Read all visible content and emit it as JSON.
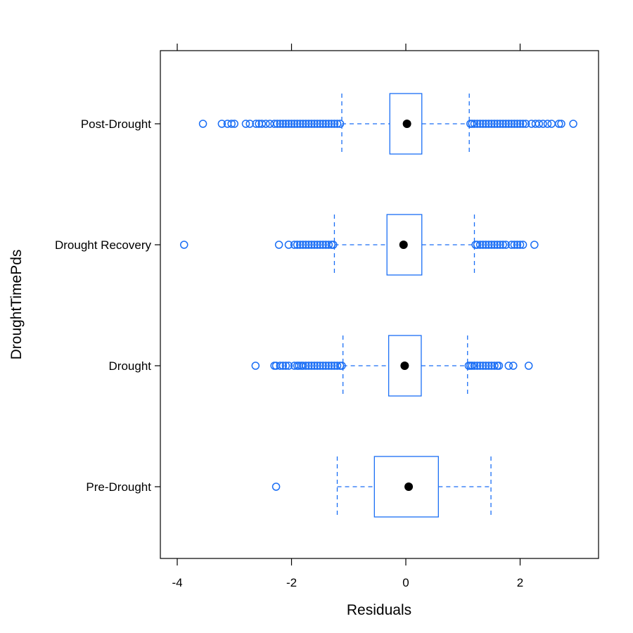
{
  "chart_data": {
    "type": "boxplot",
    "orientation": "horizontal",
    "xlabel": "Residuals",
    "ylabel": "DroughtTimePds",
    "xlim": [
      -4.0,
      3.5
    ],
    "xticks": [
      -4,
      -2,
      0,
      2
    ],
    "xtick_labels": [
      "-4",
      "-2",
      "0",
      "2"
    ],
    "grid": false,
    "colors": {
      "box": "#1a6ef5",
      "median": "#000000",
      "frame": "#000000"
    },
    "categories": [
      "Pre-Drought",
      "Drought",
      "Drought Recovery",
      "Post-Drought"
    ],
    "series": [
      {
        "category": "Pre-Drought",
        "whisker_low": -1.2,
        "q1": -0.55,
        "median": 0.05,
        "q3": 0.57,
        "whisker_high": 1.49,
        "outliers": [
          -2.27
        ]
      },
      {
        "category": "Drought",
        "whisker_low": -1.1,
        "q1": -0.3,
        "median": -0.02,
        "q3": 0.27,
        "whisker_high": 1.08,
        "outliers": [
          -2.63,
          -2.3,
          -2.27,
          -2.2,
          -2.15,
          -2.1,
          -2.05,
          -1.95,
          -1.9,
          -1.87,
          -1.83,
          -1.8,
          -1.75,
          -1.7,
          -1.65,
          -1.6,
          -1.55,
          -1.5,
          -1.45,
          -1.4,
          -1.35,
          -1.3,
          -1.25,
          -1.2,
          -1.15,
          -1.12,
          1.1,
          1.13,
          1.16,
          1.2,
          1.25,
          1.3,
          1.35,
          1.4,
          1.45,
          1.5,
          1.55,
          1.6,
          1.63,
          1.8,
          1.88,
          2.15
        ]
      },
      {
        "category": "Drought Recovery",
        "whisker_low": -1.25,
        "q1": -0.33,
        "median": -0.04,
        "q3": 0.28,
        "whisker_high": 1.2,
        "outliers": [
          -3.88,
          -2.22,
          -2.05,
          -1.95,
          -1.9,
          -1.85,
          -1.8,
          -1.75,
          -1.7,
          -1.65,
          -1.6,
          -1.55,
          -1.5,
          -1.45,
          -1.4,
          -1.35,
          -1.3,
          -1.27,
          1.22,
          1.25,
          1.3,
          1.35,
          1.4,
          1.45,
          1.5,
          1.55,
          1.6,
          1.65,
          1.7,
          1.75,
          1.85,
          1.9,
          1.95,
          2.0,
          2.05,
          2.25
        ]
      },
      {
        "category": "Post-Drought",
        "whisker_low": -1.12,
        "q1": -0.28,
        "median": 0.02,
        "q3": 0.28,
        "whisker_high": 1.11,
        "outliers": [
          -3.55,
          -3.22,
          -3.12,
          -3.05,
          -3.0,
          -2.8,
          -2.73,
          -2.62,
          -2.57,
          -2.52,
          -2.45,
          -2.38,
          -2.3,
          -2.25,
          -2.2,
          -2.15,
          -2.1,
          -2.05,
          -2.0,
          -1.95,
          -1.9,
          -1.85,
          -1.8,
          -1.75,
          -1.7,
          -1.65,
          -1.6,
          -1.55,
          -1.5,
          -1.45,
          -1.4,
          -1.35,
          -1.3,
          -1.25,
          -1.2,
          -1.15,
          1.13,
          1.16,
          1.2,
          1.25,
          1.3,
          1.35,
          1.4,
          1.45,
          1.5,
          1.55,
          1.6,
          1.65,
          1.7,
          1.75,
          1.8,
          1.85,
          1.9,
          1.95,
          2.0,
          2.05,
          2.1,
          2.2,
          2.27,
          2.33,
          2.4,
          2.48,
          2.55,
          2.68,
          2.72,
          2.93
        ]
      }
    ]
  }
}
